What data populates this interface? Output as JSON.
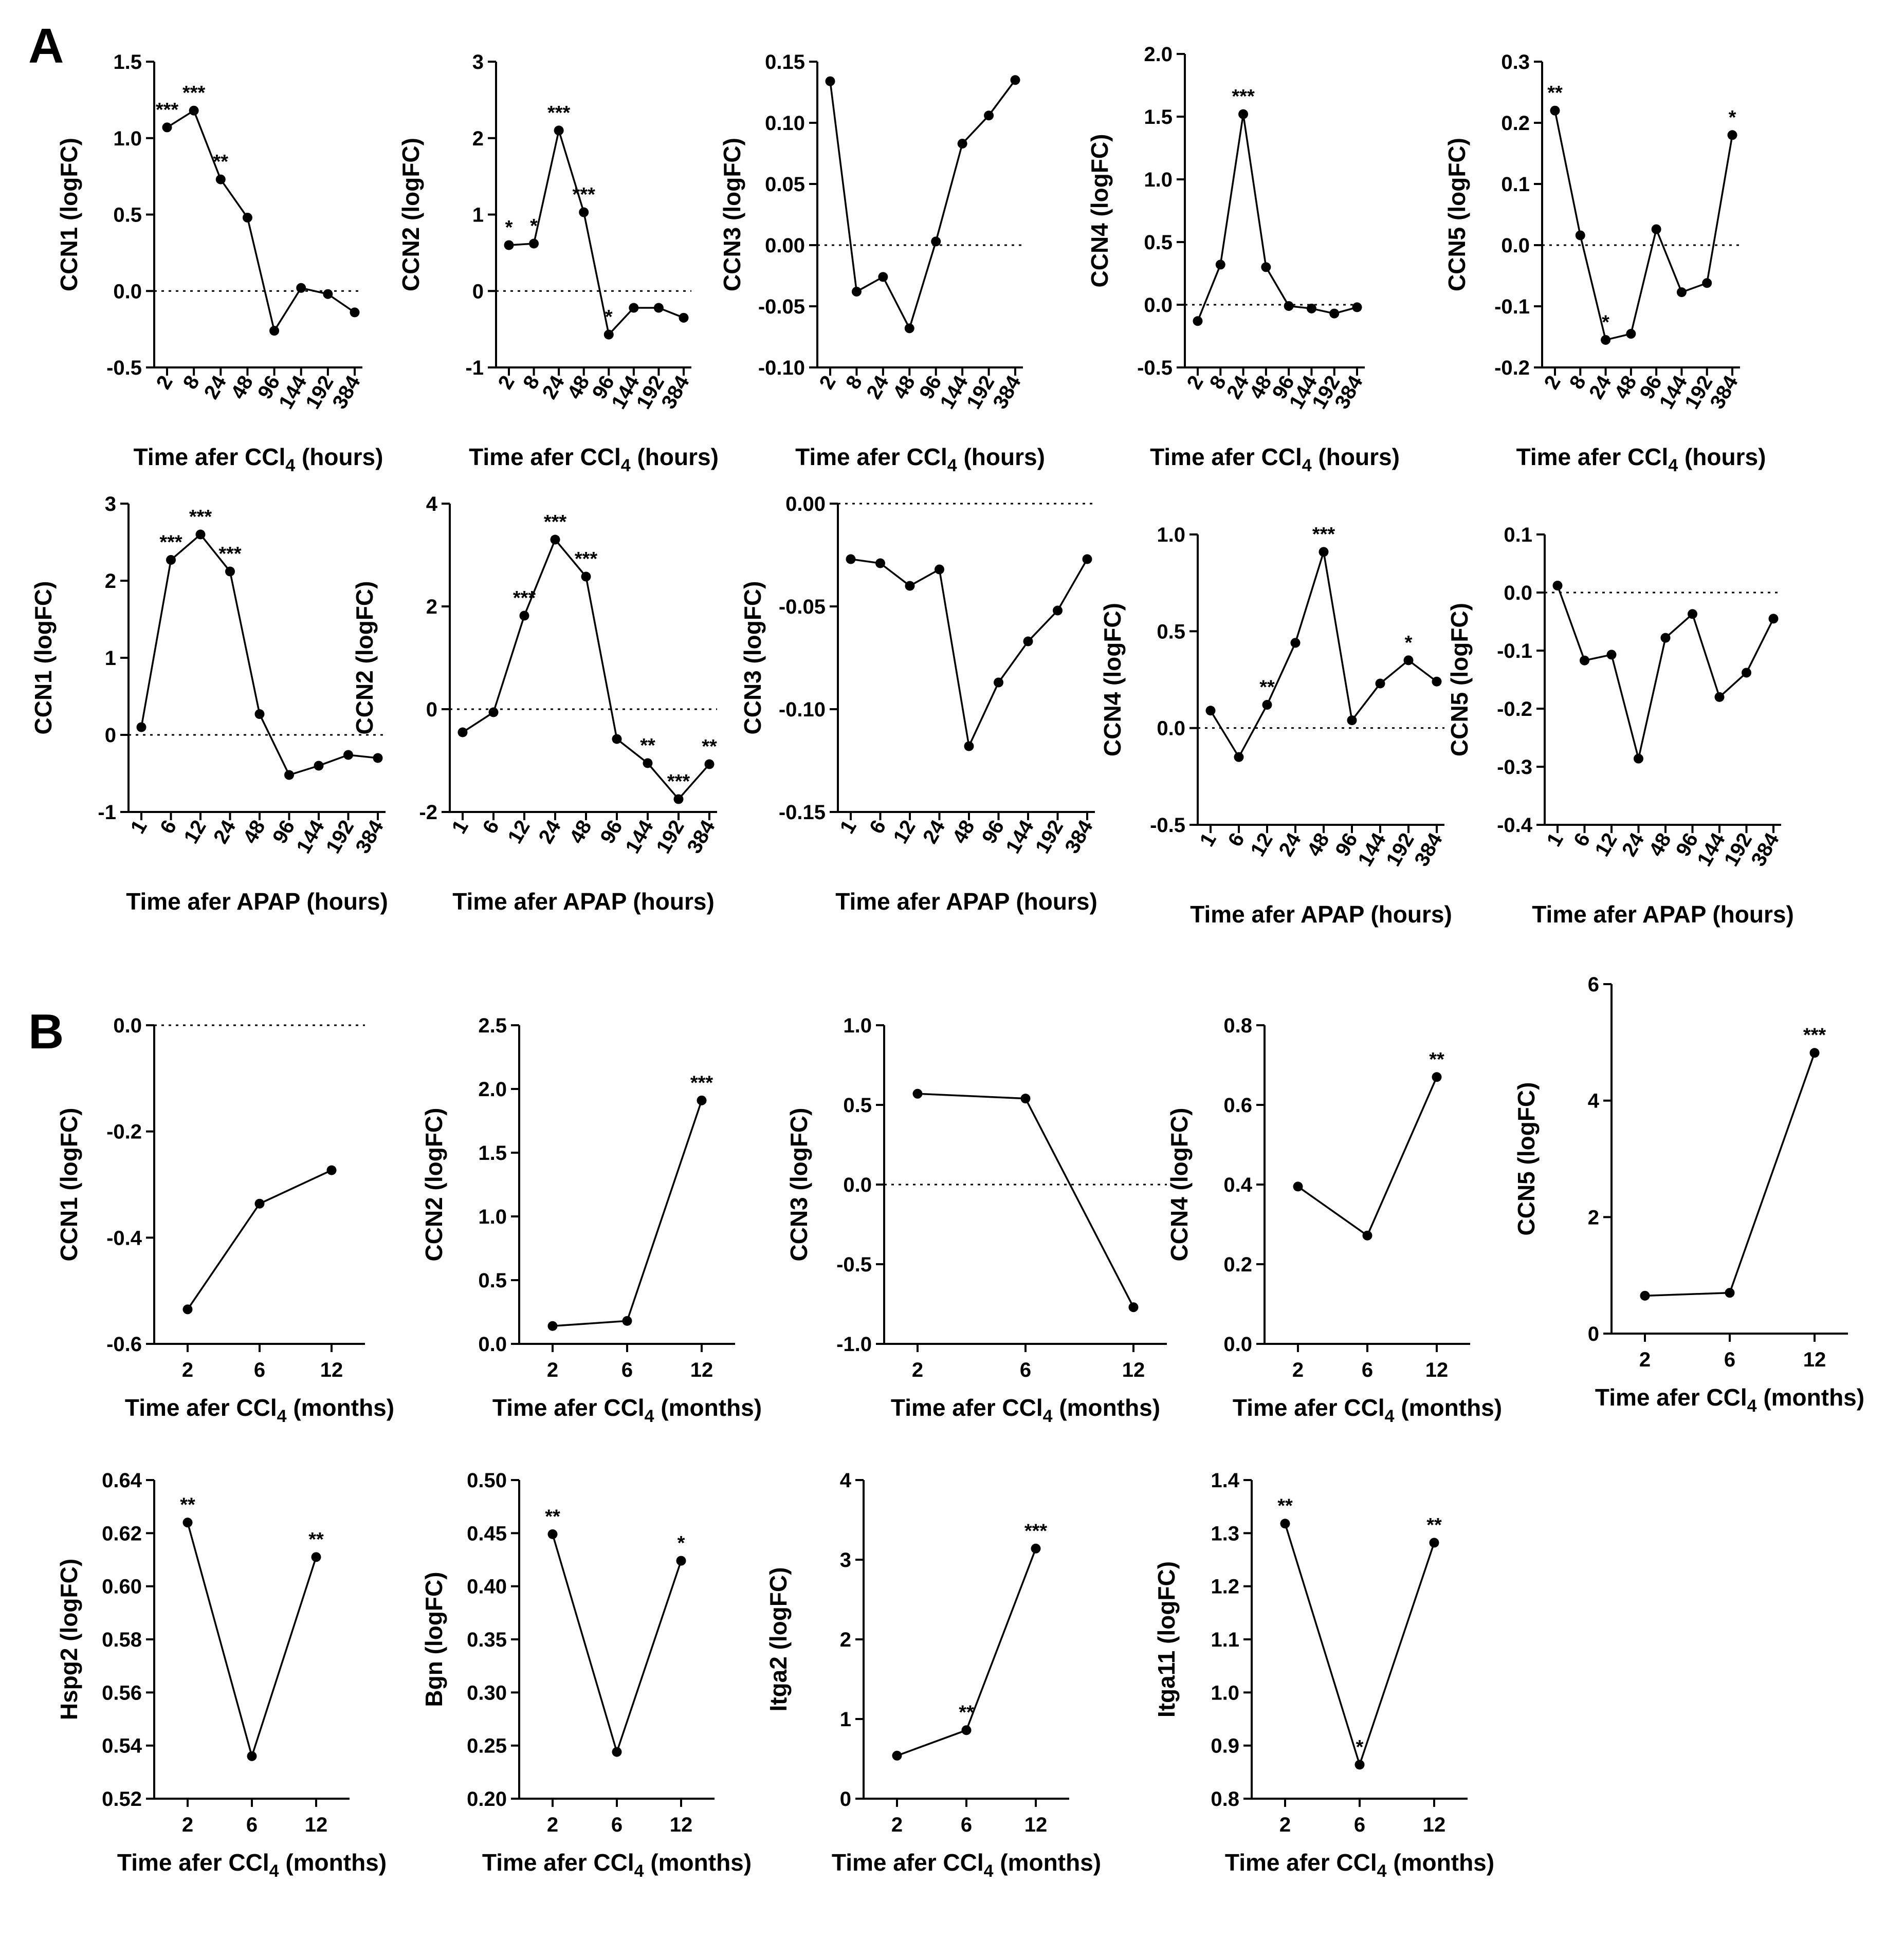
{
  "panel_labels": [
    "A",
    "B"
  ],
  "colors": {
    "line": "#000000",
    "background": "#ffffff"
  },
  "chart_data": [
    {
      "type": "line",
      "ylabel": "CCN1 (logFC)",
      "xlabel_pre": "Time afer CCl",
      "xlabel_sub": "4",
      "xlabel_post": " (hours)",
      "categories": [
        "2",
        "8",
        "24",
        "48",
        "96",
        "144",
        "192",
        "384"
      ],
      "values": [
        1.07,
        1.18,
        0.73,
        0.48,
        -0.26,
        0.02,
        -0.02,
        -0.14
      ],
      "stars": [
        "***",
        "***",
        "**",
        "",
        "",
        "",
        "",
        ""
      ],
      "ylim": [
        -0.5,
        1.5
      ],
      "yticks": [
        -0.5,
        0.0,
        0.5,
        1.0,
        1.5
      ],
      "ytick_labels": [
        "-0.5",
        "0.0",
        "0.5",
        "1.0",
        "1.5"
      ],
      "zero_line": true
    },
    {
      "type": "line",
      "ylabel": "CCN2 (logFC)",
      "xlabel_pre": "Time afer CCl",
      "xlabel_sub": "4",
      "xlabel_post": " (hours)",
      "categories": [
        "2",
        "8",
        "24",
        "48",
        "96",
        "144",
        "192",
        "384"
      ],
      "values": [
        0.6,
        0.62,
        2.1,
        1.03,
        -0.57,
        -0.22,
        -0.22,
        -0.35
      ],
      "stars": [
        "*",
        "*",
        "***",
        "***",
        "*",
        "",
        "",
        ""
      ],
      "ylim": [
        -1,
        3
      ],
      "yticks": [
        -1,
        0,
        1,
        2,
        3
      ],
      "ytick_labels": [
        "-1",
        "0",
        "1",
        "2",
        "3"
      ],
      "zero_line": true
    },
    {
      "type": "line",
      "ylabel": "CCN3 (logFC)",
      "xlabel_pre": "Time afer CCl",
      "xlabel_sub": "4",
      "xlabel_post": " (hours)",
      "categories": [
        "2",
        "8",
        "24",
        "48",
        "96",
        "144",
        "192",
        "384"
      ],
      "values": [
        0.134,
        -0.038,
        -0.026,
        -0.068,
        0.003,
        0.083,
        0.106,
        0.135
      ],
      "stars": [
        "",
        "",
        "",
        "",
        "",
        "",
        "",
        ""
      ],
      "ylim": [
        -0.1,
        0.15
      ],
      "yticks": [
        -0.1,
        -0.05,
        0.0,
        0.05,
        0.1,
        0.15
      ],
      "ytick_labels": [
        "-0.10",
        "-0.05",
        "0.00",
        "0.05",
        "0.10",
        "0.15"
      ],
      "zero_line": true
    },
    {
      "type": "line",
      "ylabel": "CCN4 (logFC)",
      "xlabel_pre": "Time afer CCl",
      "xlabel_sub": "4",
      "xlabel_post": " (hours)",
      "categories": [
        "2",
        "8",
        "24",
        "48",
        "96",
        "144",
        "192",
        "384"
      ],
      "values": [
        -0.13,
        0.32,
        1.52,
        0.3,
        -0.01,
        -0.03,
        -0.07,
        -0.02
      ],
      "stars": [
        "",
        "",
        "***",
        "",
        "",
        "",
        "",
        ""
      ],
      "ylim": [
        -0.5,
        2.0
      ],
      "yticks": [
        -0.5,
        0.0,
        0.5,
        1.0,
        1.5,
        2.0
      ],
      "ytick_labels": [
        "-0.5",
        "0.0",
        "0.5",
        "1.0",
        "1.5",
        "2.0"
      ],
      "zero_line": true
    },
    {
      "type": "line",
      "ylabel": "CCN5 (logFC)",
      "xlabel_pre": "Time afer CCl",
      "xlabel_sub": "4",
      "xlabel_post": " (hours)",
      "categories": [
        "2",
        "8",
        "24",
        "48",
        "96",
        "144",
        "192",
        "384"
      ],
      "values": [
        0.22,
        0.016,
        -0.155,
        -0.145,
        0.026,
        -0.077,
        -0.062,
        0.18
      ],
      "stars": [
        "**",
        "",
        "*",
        "",
        "",
        "",
        "",
        "*"
      ],
      "ylim": [
        -0.2,
        0.3
      ],
      "yticks": [
        -0.2,
        -0.1,
        0.0,
        0.1,
        0.2,
        0.3
      ],
      "ytick_labels": [
        "-0.2",
        "-0.1",
        "0.0",
        "0.1",
        "0.2",
        "0.3"
      ],
      "zero_line": true
    },
    {
      "type": "line",
      "ylabel": "CCN1 (logFC)",
      "xlabel_pre": "Time afer APAP (hours)",
      "xlabel_sub": "",
      "xlabel_post": "",
      "categories": [
        "1",
        "6",
        "12",
        "24",
        "48",
        "96",
        "144",
        "192",
        "384"
      ],
      "values": [
        0.1,
        2.27,
        2.6,
        2.12,
        0.27,
        -0.52,
        -0.4,
        -0.26,
        -0.3
      ],
      "stars": [
        "",
        "***",
        "***",
        "***",
        "",
        "",
        "",
        "",
        ""
      ],
      "ylim": [
        -1,
        3
      ],
      "yticks": [
        -1,
        0,
        1,
        2,
        3
      ],
      "ytick_labels": [
        "-1",
        "0",
        "1",
        "2",
        "3"
      ],
      "zero_line": true
    },
    {
      "type": "line",
      "ylabel": "CCN2 (logFC)",
      "xlabel_pre": "Time afer APAP (hours)",
      "xlabel_sub": "",
      "xlabel_post": "",
      "categories": [
        "1",
        "6",
        "12",
        "24",
        "48",
        "96",
        "144",
        "192",
        "384"
      ],
      "values": [
        -0.45,
        -0.06,
        1.82,
        3.3,
        2.58,
        -0.58,
        -1.05,
        -1.75,
        -1.07
      ],
      "stars": [
        "",
        "",
        "***",
        "***",
        "***",
        "",
        "**",
        "***",
        "**"
      ],
      "ylim": [
        -2,
        4
      ],
      "yticks": [
        -2,
        0,
        2,
        4
      ],
      "ytick_labels": [
        "-2",
        "0",
        "2",
        "4"
      ],
      "zero_line": true
    },
    {
      "type": "line",
      "ylabel": "CCN3 (logFC)",
      "xlabel_pre": "Time afer APAP (hours)",
      "xlabel_sub": "",
      "xlabel_post": "",
      "categories": [
        "1",
        "6",
        "12",
        "24",
        "48",
        "96",
        "144",
        "192",
        "384"
      ],
      "values": [
        -0.027,
        -0.029,
        -0.04,
        -0.032,
        -0.118,
        -0.087,
        -0.067,
        -0.052,
        -0.027
      ],
      "stars": [
        "",
        "",
        "",
        "",
        "",
        "",
        "",
        "",
        ""
      ],
      "ylim": [
        -0.15,
        0.0
      ],
      "yticks": [
        -0.15,
        -0.1,
        -0.05,
        0.0
      ],
      "ytick_labels": [
        "-0.15",
        "-0.10",
        "-0.05",
        "0.00"
      ],
      "zero_line": true
    },
    {
      "type": "line",
      "ylabel": "CCN4 (logFC)",
      "xlabel_pre": "Time afer APAP (hours)",
      "xlabel_sub": "",
      "xlabel_post": "",
      "categories": [
        "1",
        "6",
        "12",
        "24",
        "48",
        "96",
        "144",
        "192",
        "384"
      ],
      "values": [
        0.09,
        -0.15,
        0.12,
        0.44,
        0.91,
        0.04,
        0.23,
        0.35,
        0.24
      ],
      "stars": [
        "",
        "",
        "**",
        "",
        "***",
        "",
        "",
        "*",
        ""
      ],
      "ylim": [
        -0.5,
        1.0
      ],
      "yticks": [
        -0.5,
        0.0,
        0.5,
        1.0
      ],
      "ytick_labels": [
        "-0.5",
        "0.0",
        "0.5",
        "1.0"
      ],
      "zero_line": true
    },
    {
      "type": "line",
      "ylabel": "CCN5 (logFC)",
      "xlabel_pre": "Time afer APAP (hours)",
      "xlabel_sub": "",
      "xlabel_post": "",
      "categories": [
        "1",
        "6",
        "12",
        "24",
        "48",
        "96",
        "144",
        "192",
        "384"
      ],
      "values": [
        0.012,
        -0.117,
        -0.107,
        -0.286,
        -0.078,
        -0.037,
        -0.18,
        -0.138,
        -0.045
      ],
      "stars": [
        "",
        "",
        "",
        "",
        "",
        "",
        "",
        "",
        ""
      ],
      "ylim": [
        -0.4,
        0.1
      ],
      "yticks": [
        -0.4,
        -0.3,
        -0.2,
        -0.1,
        0.0,
        0.1
      ],
      "ytick_labels": [
        "-0.4",
        "-0.3",
        "-0.2",
        "-0.1",
        "0.0",
        "0.1"
      ],
      "zero_line": true
    },
    {
      "type": "line",
      "ylabel": "CCN1 (logFC)",
      "xlabel_pre": "Time afer CCl",
      "xlabel_sub": "4",
      "xlabel_post": " (months)",
      "categories": [
        "2",
        "6",
        "12"
      ],
      "values": [
        -0.535,
        -0.336,
        -0.273
      ],
      "stars": [
        "",
        "",
        ""
      ],
      "ylim": [
        -0.6,
        0.0
      ],
      "yticks": [
        -0.6,
        -0.4,
        -0.2,
        0.0
      ],
      "ytick_labels": [
        "-0.6",
        "-0.4",
        "-0.2",
        "0.0"
      ],
      "zero_line": true
    },
    {
      "type": "line",
      "ylabel": "CCN2 (logFC)",
      "xlabel_pre": "Time afer CCl",
      "xlabel_sub": "4",
      "xlabel_post": " (months)",
      "categories": [
        "2",
        "6",
        "12"
      ],
      "values": [
        0.14,
        0.18,
        1.91
      ],
      "stars": [
        "",
        "",
        "***"
      ],
      "ylim": [
        0.0,
        2.5
      ],
      "yticks": [
        0.0,
        0.5,
        1.0,
        1.5,
        2.0,
        2.5
      ],
      "ytick_labels": [
        "0.0",
        "0.5",
        "1.0",
        "1.5",
        "2.0",
        "2.5"
      ],
      "zero_line": false
    },
    {
      "type": "line",
      "ylabel": "CCN3 (logFC)",
      "xlabel_pre": "Time afer CCl",
      "xlabel_sub": "4",
      "xlabel_post": " (months)",
      "categories": [
        "2",
        "6",
        "12"
      ],
      "values": [
        0.57,
        0.54,
        -0.77
      ],
      "stars": [
        "",
        "",
        ""
      ],
      "ylim": [
        -1.0,
        1.0
      ],
      "yticks": [
        -1.0,
        -0.5,
        0.0,
        0.5,
        1.0
      ],
      "ytick_labels": [
        "-1.0",
        "-0.5",
        "0.0",
        "0.5",
        "1.0"
      ],
      "zero_line": true
    },
    {
      "type": "line",
      "ylabel": "CCN4 (logFC)",
      "xlabel_pre": "Time afer CCl",
      "xlabel_sub": "4",
      "xlabel_post": " (months)",
      "categories": [
        "2",
        "6",
        "12"
      ],
      "values": [
        0.395,
        0.272,
        0.67
      ],
      "stars": [
        "",
        "",
        "**"
      ],
      "ylim": [
        0.0,
        0.8
      ],
      "yticks": [
        0.0,
        0.2,
        0.4,
        0.6,
        0.8
      ],
      "ytick_labels": [
        "0.0",
        "0.2",
        "0.4",
        "0.6",
        "0.8"
      ],
      "zero_line": false
    },
    {
      "type": "line",
      "ylabel": "CCN5 (logFC)",
      "xlabel_pre": "Time afer CCl",
      "xlabel_sub": "4",
      "xlabel_post": " (months)",
      "categories": [
        "2",
        "6",
        "12"
      ],
      "values": [
        0.65,
        0.7,
        4.82
      ],
      "stars": [
        "",
        "",
        "***"
      ],
      "ylim": [
        0,
        6
      ],
      "yticks": [
        0,
        2,
        4,
        6
      ],
      "ytick_labels": [
        "0",
        "2",
        "4",
        "6"
      ],
      "zero_line": false
    },
    {
      "type": "line",
      "ylabel": "Hspg2 (logFC)",
      "xlabel_pre": "Time afer CCl",
      "xlabel_sub": "4",
      "xlabel_post": " (months)",
      "categories": [
        "2",
        "6",
        "12"
      ],
      "values": [
        0.624,
        0.536,
        0.611
      ],
      "stars": [
        "**",
        "",
        "**"
      ],
      "ylim": [
        0.52,
        0.64
      ],
      "yticks": [
        0.52,
        0.54,
        0.56,
        0.58,
        0.6,
        0.62,
        0.64
      ],
      "ytick_labels": [
        "0.52",
        "0.54",
        "0.56",
        "0.58",
        "0.60",
        "0.62",
        "0.64"
      ],
      "zero_line": false
    },
    {
      "type": "line",
      "ylabel": "Bgn (logFC)",
      "xlabel_pre": "Time afer CCl",
      "xlabel_sub": "4",
      "xlabel_post": " (months)",
      "categories": [
        "2",
        "6",
        "12"
      ],
      "values": [
        0.449,
        0.244,
        0.424
      ],
      "stars": [
        "**",
        "",
        "*"
      ],
      "ylim": [
        0.2,
        0.5
      ],
      "yticks": [
        0.2,
        0.25,
        0.3,
        0.35,
        0.4,
        0.45,
        0.5
      ],
      "ytick_labels": [
        "0.20",
        "0.25",
        "0.30",
        "0.35",
        "0.40",
        "0.45",
        "0.50"
      ],
      "zero_line": false
    },
    {
      "type": "line",
      "ylabel": "Itga2 (logFC)",
      "xlabel_pre": "Time afer CCl",
      "xlabel_sub": "4",
      "xlabel_post": " (months)",
      "categories": [
        "2",
        "6",
        "12"
      ],
      "values": [
        0.54,
        0.86,
        3.14
      ],
      "stars": [
        "",
        "**",
        "***"
      ],
      "ylim": [
        0,
        4
      ],
      "yticks": [
        0,
        1,
        2,
        3,
        4
      ],
      "ytick_labels": [
        "0",
        "1",
        "2",
        "3",
        "4"
      ],
      "zero_line": false
    },
    {
      "type": "line",
      "ylabel": "Itga11 (logFC)",
      "xlabel_pre": "Time afer CCl",
      "xlabel_sub": "4",
      "xlabel_post": " (months)",
      "categories": [
        "2",
        "6",
        "12"
      ],
      "values": [
        1.318,
        0.864,
        1.282
      ],
      "stars": [
        "**",
        "*",
        "**"
      ],
      "ylim": [
        0.8,
        1.4
      ],
      "yticks": [
        0.8,
        0.9,
        1.0,
        1.1,
        1.2,
        1.3,
        1.4
      ],
      "ytick_labels": [
        "0.8",
        "0.9",
        "1.0",
        "1.1",
        "1.2",
        "1.3",
        "1.4"
      ],
      "zero_line": false
    }
  ]
}
